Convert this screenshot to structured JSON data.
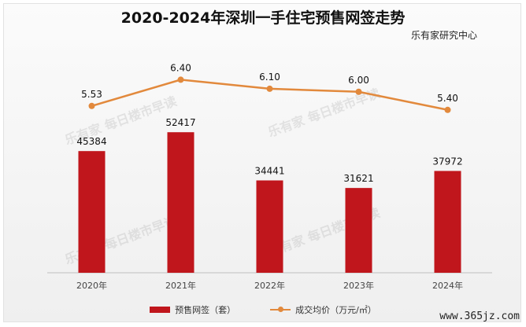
{
  "header": {
    "title": "2020-2024年深圳一手住宅预售网签走势",
    "source": "乐有家研究中心"
  },
  "watermark": {
    "text": "每日楼市早读",
    "logo": "乐有家"
  },
  "site_watermark": "www.365jz.com",
  "chart_data": {
    "type": "bar",
    "categories": [
      "2020年",
      "2021年",
      "2022年",
      "2023年",
      "2024年"
    ],
    "series": [
      {
        "name": "预售网签（套）",
        "type": "bar",
        "values": [
          45384,
          52417,
          34441,
          31621,
          37972
        ],
        "color": "#c0161c",
        "axis": "left"
      },
      {
        "name": "成交均价（万元/㎡）",
        "type": "line",
        "values": [
          5.53,
          6.4,
          6.1,
          6.0,
          5.4
        ],
        "labels": [
          "5.53",
          "6.40",
          "6.10",
          "6.00",
          "5.40"
        ],
        "color": "#e2893c",
        "axis": "right"
      }
    ],
    "bar_ylim": [
      0,
      90000
    ],
    "line_ylim": [
      0,
      8
    ],
    "legend_position": "bottom"
  }
}
